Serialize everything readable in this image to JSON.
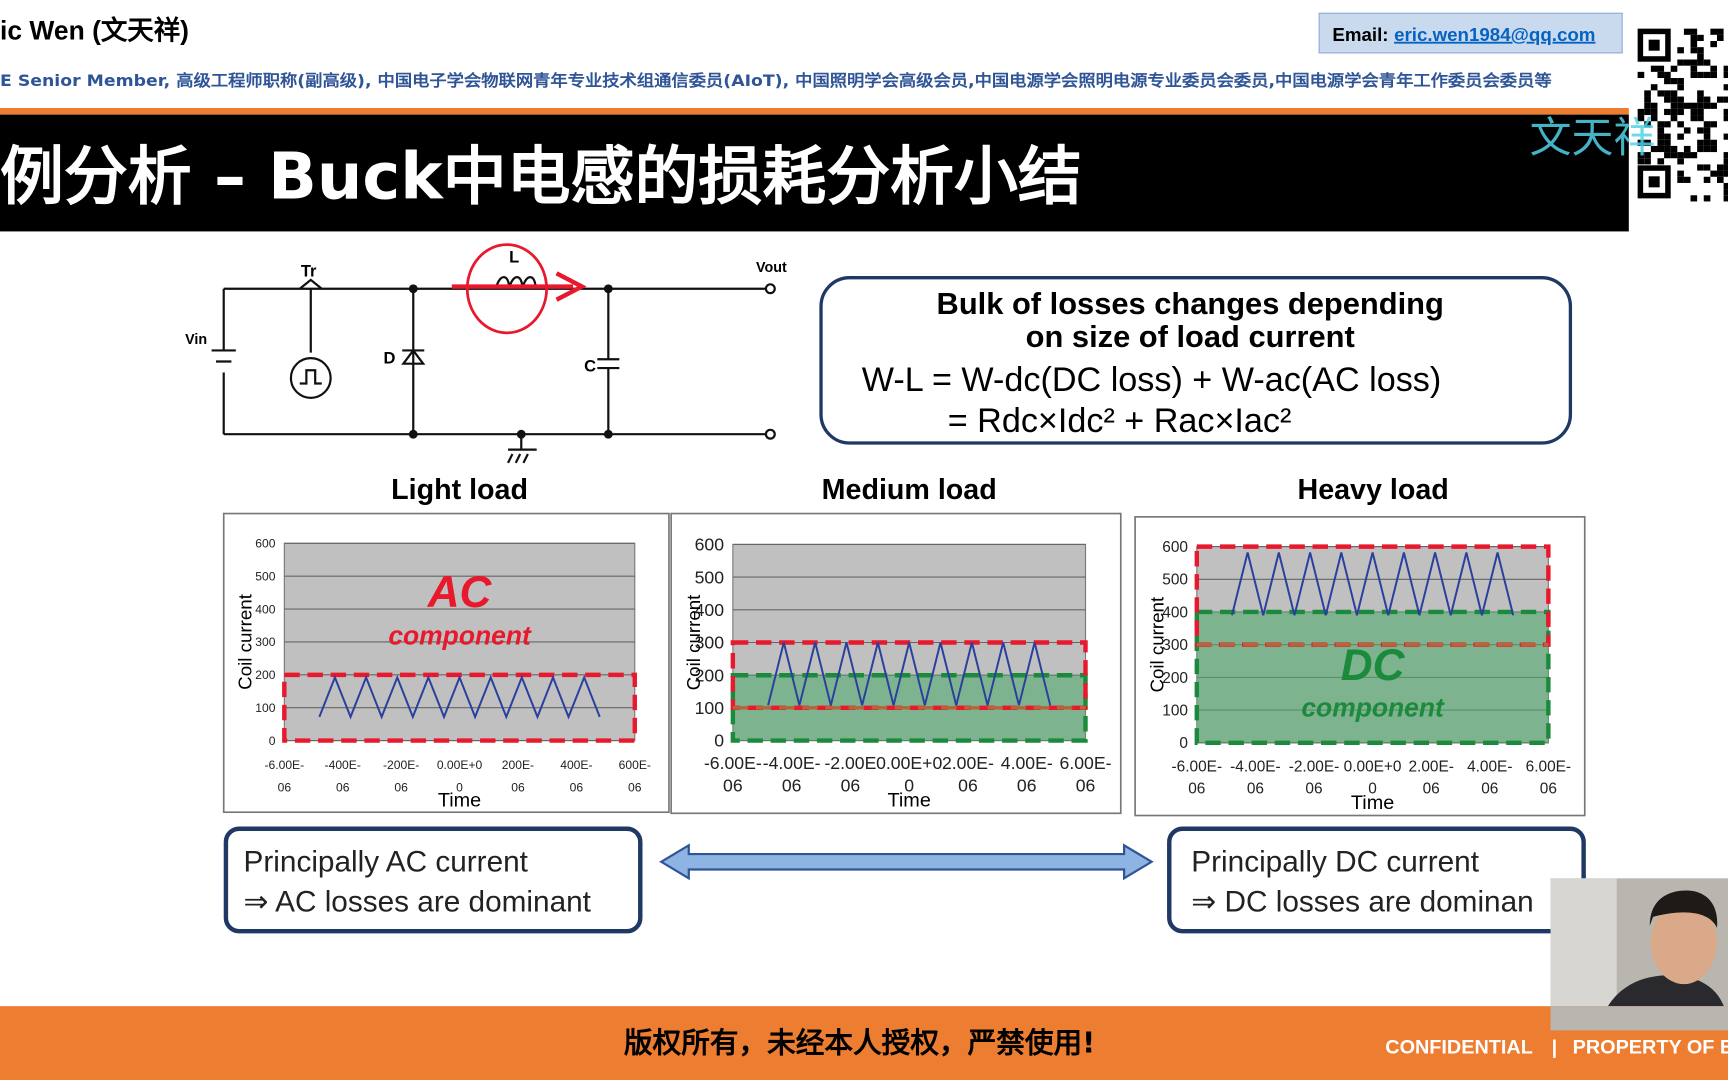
{
  "header": {
    "name": "ic Wen (文天祥)",
    "affiliations": "E Senior Member, 高级工程师职称(副高级), 中国电子学会物联网青年专业技术组通信委员(AIoT), 中国照明学会高级会员,中国电源学会照明电源专业委员会委员,中国电源学会青年工作委员会委员等",
    "email_label": "Email:",
    "email": "eric.wen1984@qq.com",
    "watermark": "文天祥"
  },
  "slide": {
    "title": "例分析 – Buck中电感的损耗分析小结",
    "circuit": {
      "tr": "Tr",
      "l": "L",
      "vout": "Vout",
      "vin": "Vin",
      "d": "D",
      "c": "C"
    },
    "formula": {
      "line1": "Bulk of losses changes depending",
      "line2": "on size of load current",
      "line3": "W-L = W-dc(DC loss) + W-ac(AC loss)",
      "line4": "= Rdc×Idc² + Rac×Iac²"
    },
    "plots": [
      {
        "title": "Light load",
        "ylabel": "Coil current",
        "xlabel": "Time",
        "yticks": [
          "0",
          "100",
          "200",
          "300",
          "400",
          "500",
          "600"
        ],
        "xticks_top": [
          "-6.00E-",
          "-400E-",
          "-200E-",
          "0.00E+0",
          "200E-",
          "400E-",
          "600E-"
        ],
        "xticks_bottom": [
          "06",
          "06",
          "06",
          "0",
          "06",
          "06",
          "06"
        ],
        "annotation": [
          "AC",
          "component"
        ]
      },
      {
        "title": "Medium load",
        "ylabel": "Coil current",
        "xlabel": "Time",
        "yticks": [
          "0",
          "100",
          "200",
          "300",
          "400",
          "500",
          "600"
        ],
        "xticks_top": [
          "-6.00E-",
          "-4.00E-",
          "-2.00E",
          "0.00E+0",
          "2.00E-",
          "4.00E-",
          "6.00E-"
        ],
        "xticks_bottom": [
          "06",
          "06",
          "06",
          "0",
          "06",
          "06",
          "06"
        ]
      },
      {
        "title": "Heavy load",
        "ylabel": "Coil current",
        "xlabel": "Time",
        "yticks": [
          "0",
          "100",
          "200",
          "300",
          "400",
          "500",
          "600"
        ],
        "xticks_top": [
          "-6.00E-",
          "-4.00E-",
          "-2.00E-",
          "0.00E+0",
          "2.00E-",
          "4.00E-",
          "6.00E-"
        ],
        "xticks_bottom": [
          "06",
          "06",
          "06",
          "0",
          "06",
          "06",
          "06"
        ],
        "annotation": [
          "DC",
          "component"
        ]
      }
    ],
    "notes": [
      {
        "line1": "Principally AC current",
        "line2": "⇒ AC losses are dominant"
      },
      {
        "line1": "Principally DC current",
        "line2": "⇒ DC losses are dominan"
      }
    ]
  },
  "footer": {
    "notice": "版权所有，未经本人授权，严禁使用!",
    "confidential": "CONFIDENTIAL",
    "separator": "|",
    "property": "PROPERTY OF  E"
  }
}
